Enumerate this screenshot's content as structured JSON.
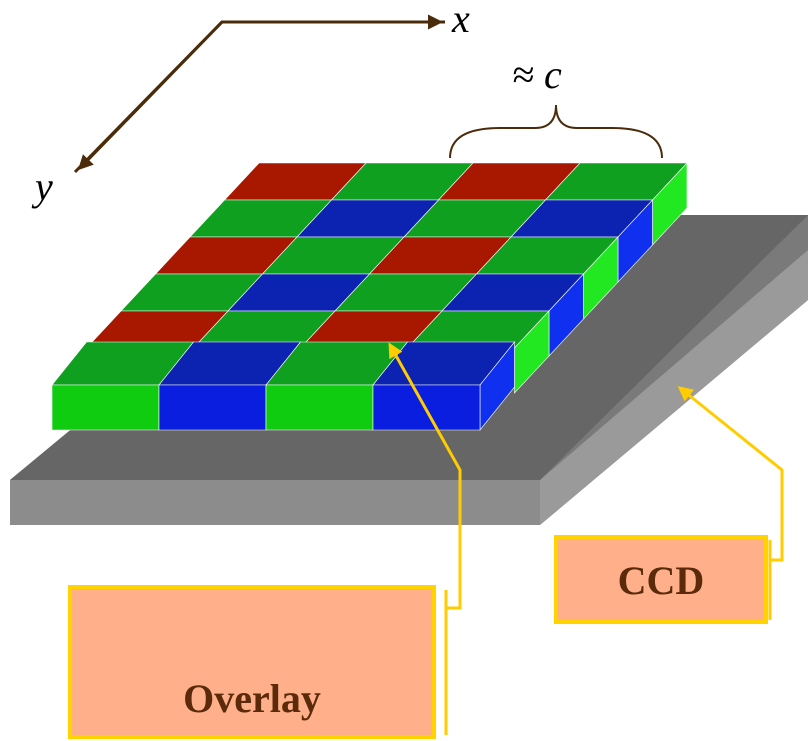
{
  "axes": {
    "x": "x",
    "y": "y"
  },
  "brace_label": "≈ c",
  "labels": {
    "ccd": "CCD",
    "overlay": "Overlay"
  }
}
